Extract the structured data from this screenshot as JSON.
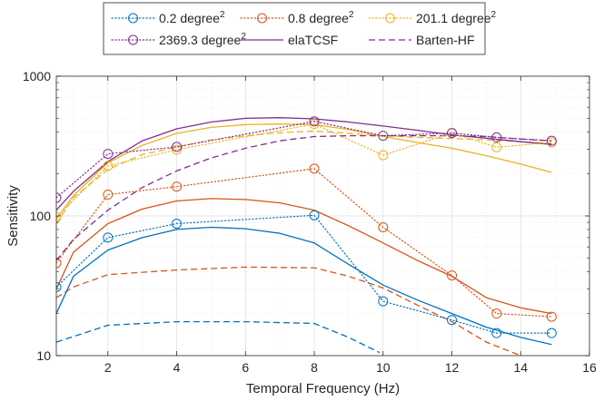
{
  "chart_data": {
    "type": "line",
    "xlabel": "Temporal Frequency (Hz)",
    "ylabel": "Sensitivity",
    "xlim": [
      0.5,
      16
    ],
    "ylim": [
      10,
      1000
    ],
    "yscale": "log",
    "xticks": [
      2,
      4,
      6,
      8,
      10,
      12,
      14,
      16
    ],
    "xtick_labels": [
      "2",
      "4",
      "6",
      "8",
      "10",
      "12",
      "14",
      "16"
    ],
    "yticks": [
      10,
      100,
      1000
    ],
    "ytick_labels": [
      "10",
      "100",
      "1000"
    ],
    "grid": true,
    "legend_position": "top, outside, 3 columns",
    "legend": [
      {
        "label": "0.2 degree",
        "sup": "2",
        "color": "#0072BD",
        "style": "dotted-marker"
      },
      {
        "label": "0.8 degree",
        "sup": "2",
        "color": "#D95319",
        "style": "dotted-marker"
      },
      {
        "label": "201.1 degree",
        "sup": "2",
        "color": "#EDB120",
        "style": "dotted-marker"
      },
      {
        "label": "2369.3 degree",
        "sup": "2",
        "color": "#7E2F8E",
        "style": "dotted-marker"
      },
      {
        "label": "elaTCSF",
        "color": "#7E2F8E",
        "style": "solid"
      },
      {
        "label": "Barten-HF",
        "color": "#7E2F8E",
        "style": "dashed"
      }
    ],
    "series": [
      {
        "name": "0.2 degree²",
        "kind": "measured",
        "color": "#0072BD",
        "x": [
          0.5,
          2,
          4,
          8,
          10,
          12,
          13.3,
          14.9
        ],
        "y": [
          31,
          70,
          88,
          101,
          24.5,
          18,
          14.5,
          14.5
        ]
      },
      {
        "name": "0.8 degree²",
        "kind": "measured",
        "color": "#D95319",
        "x": [
          0.5,
          2,
          4,
          8,
          10,
          12,
          13.3,
          14.9
        ],
        "y": [
          46,
          142,
          162,
          218,
          83,
          37.5,
          20,
          19
        ]
      },
      {
        "name": "201.1 degree²",
        "kind": "measured",
        "color": "#EDB120",
        "x": [
          0.5,
          2,
          4,
          8,
          10,
          12,
          13.3,
          14.9
        ],
        "y": [
          98,
          228,
          298,
          455,
          272,
          392,
          310,
          335
        ]
      },
      {
        "name": "2369.3 degree²",
        "kind": "measured",
        "color": "#7E2F8E",
        "x": [
          0.5,
          2,
          4,
          8,
          10,
          12,
          13.3,
          14.9
        ],
        "y": [
          135,
          278,
          312,
          475,
          375,
          392,
          365,
          345
        ]
      },
      {
        "name": "elaTCSF 0.2",
        "kind": "model-solid",
        "color": "#0072BD",
        "x": [
          0.5,
          1,
          2,
          3,
          4,
          5,
          6,
          7,
          8,
          9,
          10,
          11,
          12,
          13,
          14,
          14.9
        ],
        "y": [
          20,
          37,
          57,
          70,
          80,
          83,
          81,
          75,
          64,
          45,
          32,
          25,
          20,
          16,
          13.5,
          12
        ]
      },
      {
        "name": "elaTCSF 0.8",
        "kind": "model-solid",
        "color": "#D95319",
        "x": [
          0.5,
          1,
          2,
          3,
          4,
          5,
          6,
          7,
          8,
          9,
          10,
          11,
          12,
          13,
          14,
          14.9
        ],
        "y": [
          30,
          55,
          88,
          112,
          128,
          133,
          131,
          124,
          110,
          85,
          64,
          48,
          37,
          26,
          22,
          20
        ]
      },
      {
        "name": "elaTCSF 201.1",
        "kind": "model-solid",
        "color": "#EDB120",
        "x": [
          0.5,
          1,
          2,
          3,
          4,
          5,
          6,
          7,
          8,
          9,
          10,
          11,
          12,
          13,
          14,
          14.9
        ],
        "y": [
          95,
          140,
          240,
          320,
          390,
          430,
          450,
          455,
          450,
          415,
          370,
          335,
          305,
          270,
          235,
          205
        ]
      },
      {
        "name": "elaTCSF 2369.3",
        "kind": "model-solid",
        "color": "#7E2F8E",
        "x": [
          0.5,
          1,
          2,
          3,
          4,
          5,
          6,
          7,
          8,
          9,
          10,
          11,
          12,
          13,
          14,
          14.9
        ],
        "y": [
          110,
          150,
          245,
          345,
          420,
          470,
          500,
          505,
          495,
          470,
          440,
          410,
          380,
          360,
          340,
          325
        ]
      },
      {
        "name": "Barten-HF 0.2",
        "kind": "model-dashed",
        "color": "#0072BD",
        "x": [
          0.5,
          2,
          4,
          6,
          8,
          9,
          9.9
        ],
        "y": [
          12.5,
          16.5,
          17.5,
          17.5,
          17,
          13.5,
          10.5
        ]
      },
      {
        "name": "Barten-HF 0.8",
        "kind": "model-dashed",
        "color": "#D95319",
        "x": [
          0.5,
          1,
          2,
          4,
          6,
          8,
          9,
          10,
          11,
          12,
          13,
          14
        ],
        "y": [
          26,
          31,
          38,
          41,
          43,
          42.5,
          37,
          30.5,
          23,
          17.5,
          12.5,
          10
        ]
      },
      {
        "name": "Barten-HF 201.1",
        "kind": "model-dashed",
        "color": "#EDB120",
        "x": [
          0.5,
          1,
          2,
          3,
          4,
          5,
          6,
          7,
          8,
          9,
          10,
          11,
          12,
          13,
          14,
          14.9
        ],
        "y": [
          88,
          135,
          215,
          275,
          310,
          350,
          375,
          395,
          405,
          390,
          375,
          365,
          358,
          350,
          340,
          330
        ]
      },
      {
        "name": "Barten-HF 2369.3",
        "kind": "model-dashed",
        "color": "#7E2F8E",
        "x": [
          0.5,
          1,
          2,
          3,
          4,
          5,
          6,
          7,
          8,
          9,
          10,
          11,
          12,
          13,
          14,
          14.9
        ],
        "y": [
          48,
          68,
          110,
          160,
          210,
          260,
          305,
          345,
          370,
          375,
          375,
          375,
          375,
          370,
          355,
          345
        ]
      }
    ]
  }
}
